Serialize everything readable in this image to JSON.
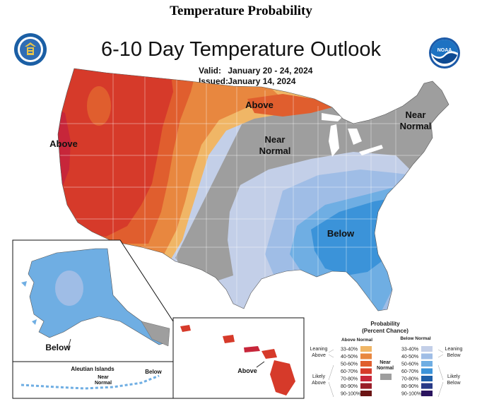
{
  "page_heading": "Temperature Probability",
  "map": {
    "title": "6-10 Day Temperature Outlook",
    "valid_label": "Valid:",
    "valid_value": "January 20 - 24, 2024",
    "issued_label": "Issued:",
    "issued_value": "January 14, 2024",
    "noaa_text": "NOAA",
    "region_labels": {
      "above_west": "Above",
      "above_north": "Above",
      "near_normal_central_1": "Near",
      "near_normal_central_2": "Normal",
      "near_normal_ne_1": "Near",
      "near_normal_ne_2": "Normal",
      "below_southeast": "Below",
      "below_alaska": "Below",
      "above_hawaii": "Above",
      "near_normal_aleutian_1": "Near",
      "near_normal_aleutian_2": "Normal",
      "below_aleutian": "Below"
    },
    "aleutian_title": "Aleutian Islands"
  },
  "legend": {
    "title_1": "Probability",
    "title_2": "(Percent Chance)",
    "above_header": "Above Normal",
    "below_header": "Below Normal",
    "near_normal_1": "Near",
    "near_normal_2": "Normal",
    "leaning_above_1": "Leaning",
    "leaning_above_2": "Above",
    "likely_above_1": "Likely",
    "likely_above_2": "Above",
    "leaning_below_1": "Leaning",
    "leaning_below_2": "Below",
    "likely_below_1": "Likely",
    "likely_below_2": "Below",
    "above_ranges": [
      "33-40%",
      "40-50%",
      "50-60%",
      "60-70%",
      "70-80%",
      "80-90%",
      "90-100%"
    ],
    "below_ranges": [
      "33-40%",
      "40-50%",
      "50-60%",
      "60-70%",
      "70-80%",
      "80-90%",
      "90-100%"
    ],
    "above_colors": [
      "#f0b666",
      "#e8873f",
      "#e05e2e",
      "#d63a2a",
      "#c7263a",
      "#9a1f2a",
      "#6b1414"
    ],
    "below_colors": [
      "#c3cfe8",
      "#9fbde6",
      "#6faee3",
      "#3b93d9",
      "#1e5fa8",
      "#283a86",
      "#2a145f"
    ],
    "near_color": "#9e9e9e"
  }
}
